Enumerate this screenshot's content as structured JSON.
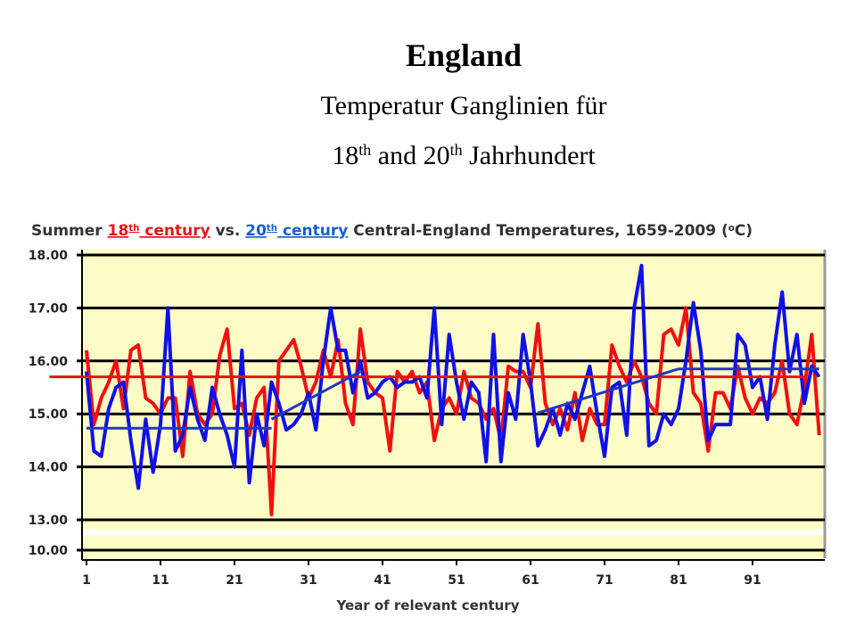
{
  "header": {
    "title": "England",
    "line1": "Temperatur Ganglinien für",
    "line2": [
      {
        "text": "18"
      },
      {
        "text": "th",
        "sup": true
      },
      {
        "text": " and 20"
      },
      {
        "text": "th",
        "sup": true
      },
      {
        "text": " Jahrhundert"
      }
    ]
  },
  "chart_data": {
    "type": "line",
    "title_segments": [
      {
        "text": "Summer ",
        "color": "#333333"
      },
      {
        "text": "18",
        "color": "#e8141b",
        "underline": true
      },
      {
        "text": "th",
        "color": "#e8141b",
        "sup": true,
        "underline": true
      },
      {
        "text": " century",
        "color": "#e8141b",
        "underline": true
      },
      {
        "text": " vs. ",
        "color": "#333333"
      },
      {
        "text": "20",
        "color": "#1a5fd0",
        "underline": true
      },
      {
        "text": "th",
        "color": "#1a5fd0",
        "sup": true,
        "underline": true
      },
      {
        "text": " century",
        "color": "#1a5fd0",
        "underline": true
      },
      {
        "text": " Central-England Temperatures, 1659-2009 (",
        "color": "#333333"
      },
      {
        "text": "o",
        "color": "#333333",
        "sup": true
      },
      {
        "text": "C)",
        "color": "#333333"
      }
    ],
    "x_label": "Year of relevant century",
    "x": [
      1,
      2,
      3,
      4,
      5,
      6,
      7,
      8,
      9,
      10,
      11,
      12,
      13,
      14,
      15,
      16,
      17,
      18,
      19,
      20,
      21,
      22,
      23,
      24,
      25,
      26,
      27,
      28,
      29,
      30,
      31,
      32,
      33,
      34,
      35,
      36,
      37,
      38,
      39,
      40,
      41,
      42,
      43,
      44,
      45,
      46,
      47,
      48,
      49,
      50,
      51,
      52,
      53,
      54,
      55,
      56,
      57,
      58,
      59,
      60,
      61,
      62,
      63,
      64,
      65,
      66,
      67,
      68,
      69,
      70,
      71,
      72,
      73,
      74,
      75,
      76,
      77,
      78,
      79,
      80,
      81,
      82,
      83,
      84,
      85,
      86,
      87,
      88,
      89,
      90,
      91,
      92,
      93,
      94,
      95,
      96,
      97,
      98,
      99,
      100
    ],
    "series": [
      {
        "name": "18th century",
        "color": "#f01010",
        "values": [
          16.2,
          14.8,
          15.3,
          15.6,
          16.0,
          15.1,
          16.2,
          16.3,
          15.3,
          15.2,
          15.0,
          15.3,
          15.3,
          14.2,
          15.8,
          15.0,
          14.8,
          15.0,
          16.1,
          16.6,
          15.1,
          15.2,
          14.6,
          15.3,
          15.5,
          13.1,
          16.0,
          16.2,
          16.4,
          15.9,
          15.3,
          15.6,
          16.2,
          15.7,
          16.4,
          15.2,
          14.8,
          16.6,
          15.6,
          15.4,
          15.3,
          14.3,
          15.8,
          15.6,
          15.8,
          15.4,
          15.6,
          14.5,
          15.1,
          15.3,
          15.0,
          15.8,
          15.3,
          15.2,
          14.9,
          15.1,
          14.5,
          15.9,
          15.8,
          15.8,
          15.5,
          16.7,
          15.2,
          14.8,
          15.1,
          14.7,
          15.4,
          14.5,
          15.1,
          14.8,
          14.8,
          16.3,
          15.9,
          15.6,
          16.0,
          15.7,
          15.2,
          15.0,
          16.5,
          16.6,
          16.3,
          17.0,
          15.4,
          15.2,
          14.3,
          15.4,
          15.4,
          15.1,
          15.9,
          15.3,
          15.0,
          15.3,
          15.2,
          15.4,
          16.0,
          15.0,
          14.8,
          15.5,
          16.5,
          14.6
        ]
      },
      {
        "name": "20th century",
        "color": "#1010e8",
        "values": [
          15.8,
          14.3,
          14.2,
          15.1,
          15.5,
          15.6,
          14.5,
          13.6,
          14.9,
          13.9,
          14.8,
          17.0,
          14.3,
          14.6,
          15.5,
          14.9,
          14.5,
          15.5,
          15.0,
          14.6,
          14.0,
          16.2,
          13.7,
          15.0,
          14.4,
          15.6,
          15.2,
          14.7,
          14.8,
          15.0,
          15.4,
          14.7,
          16.0,
          17.0,
          16.2,
          16.2,
          15.4,
          16.0,
          15.3,
          15.4,
          15.6,
          15.7,
          15.5,
          15.6,
          15.6,
          15.7,
          15.3,
          17.0,
          14.8,
          16.5,
          15.6,
          14.9,
          15.6,
          15.4,
          14.1,
          16.5,
          14.1,
          15.4,
          14.9,
          16.5,
          15.6,
          14.4,
          14.7,
          15.1,
          14.6,
          15.2,
          14.9,
          15.4,
          15.9,
          15.0,
          14.2,
          15.5,
          15.6,
          14.6,
          17.0,
          17.8,
          14.4,
          14.5,
          15.0,
          14.8,
          15.1,
          16.0,
          17.1,
          16.2,
          14.5,
          14.8,
          14.8,
          14.8,
          16.5,
          16.3,
          15.5,
          15.7,
          14.9,
          16.3,
          17.3,
          15.8,
          16.5,
          15.2,
          15.9,
          15.7
        ]
      }
    ],
    "trend_lines": [
      {
        "color": "#f01010",
        "x": [
          -4,
          98
        ],
        "y": [
          15.7,
          15.7
        ]
      },
      {
        "color": "#2038c0",
        "x": [
          1,
          26
        ],
        "y": [
          14.73,
          14.73
        ]
      },
      {
        "color": "#2038c0",
        "x": [
          26,
          38
        ],
        "y": [
          14.9,
          15.8
        ]
      },
      {
        "color": "#2038c0",
        "x": [
          62,
          81
        ],
        "y": [
          15.02,
          15.85
        ]
      },
      {
        "color": "#2038c0",
        "x": [
          81,
          100
        ],
        "y": [
          15.85,
          15.85
        ]
      }
    ],
    "xlim": [
      1,
      101
    ],
    "xticks": [
      1,
      11,
      21,
      31,
      41,
      51,
      61,
      71,
      81,
      91
    ],
    "ylim": [
      13,
      18
    ],
    "yticks": [
      {
        "value": 13,
        "label": "13.00"
      },
      {
        "value": 14,
        "label": "14.00"
      },
      {
        "value": 15,
        "label": "15.00"
      },
      {
        "value": 16,
        "label": "16.00"
      },
      {
        "value": 17,
        "label": "17.00"
      },
      {
        "value": 18,
        "label": "18.00"
      }
    ],
    "ybreak_tick": {
      "value": 10,
      "label": "10.00"
    },
    "grid": true,
    "background": "#fdfcc6"
  }
}
